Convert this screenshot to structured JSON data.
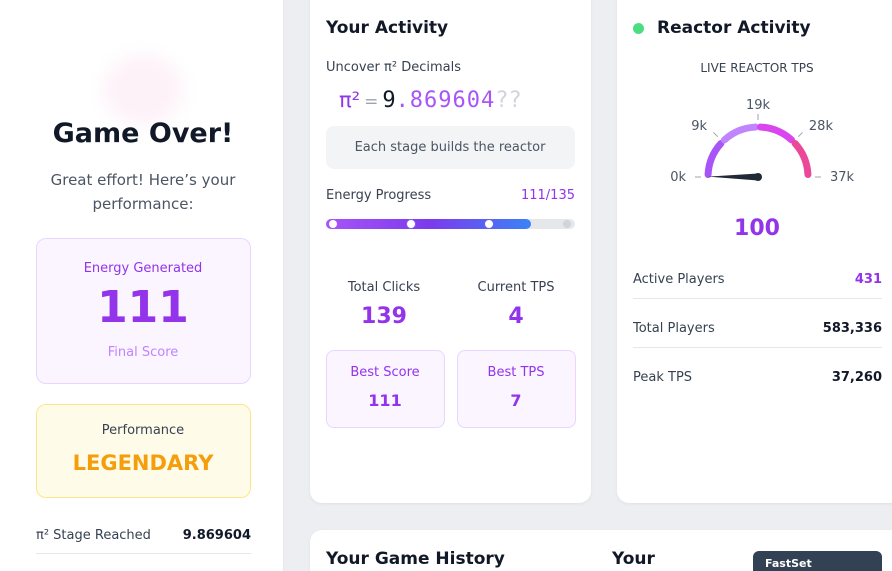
{
  "left": {
    "title": "Game Over!",
    "subtitle": "Great effort! Here’s your performance:",
    "energy": {
      "label": "Energy Generated",
      "value": 111,
      "caption": "Final Score"
    },
    "performance": {
      "label": "Performance",
      "rating": "LEGENDARY"
    },
    "stage": {
      "label": "π² Stage Reached",
      "value": 9.869604
    }
  },
  "activity": {
    "title": "Your Activity",
    "pi_label": "Uncover π² Decimals",
    "pi": {
      "symbol": "π²",
      "equals": "=",
      "integer": "9",
      "revealed": ".869604",
      "hidden": "??"
    },
    "note": "Each stage builds the reactor",
    "progress": {
      "label": "Energy Progress",
      "text": "111/135",
      "value": 111,
      "max": 135
    },
    "stats": [
      {
        "label": "Total Clicks",
        "value": 139
      },
      {
        "label": "Current TPS",
        "value": 4
      },
      {
        "label": "Best Score",
        "value": 111
      },
      {
        "label": "Best TPS",
        "value": 7
      }
    ]
  },
  "reactor": {
    "title": "Reactor Activity",
    "gauge": {
      "label": "LIVE REACTOR TPS",
      "lim": [
        0,
        37000
      ],
      "ticks": [
        {
          "value": 0,
          "label": "0k"
        },
        {
          "value": 9250,
          "label": "9k"
        },
        {
          "value": 18500,
          "label": "19k"
        },
        {
          "value": 27750,
          "label": "28k"
        },
        {
          "value": 37000,
          "label": "37k"
        }
      ],
      "value": 100
    },
    "rows": [
      {
        "label": "Active Players",
        "value": 431
      },
      {
        "label": "Total Players",
        "value": "583,336"
      },
      {
        "label": "Peak TPS",
        "value": "37,260"
      }
    ]
  },
  "history": {
    "title": "Your Game History",
    "side_title": "Your",
    "badge": "FastSet"
  }
}
